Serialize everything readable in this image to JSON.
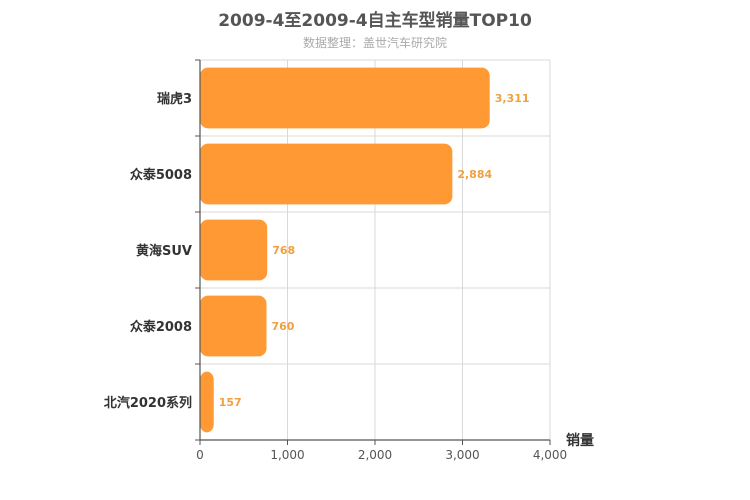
{
  "chart_data": {
    "type": "bar",
    "orientation": "horizontal",
    "title": "2009-4至2009-4自主车型销量TOP10",
    "subtitle": "数据整理：盖世汽车研究院",
    "xlabel": "销量",
    "ylabel": "",
    "categories": [
      "瑞虎3",
      "众泰5008",
      "黄海SUV",
      "众泰2008",
      "北汽2020系列"
    ],
    "values": [
      3311,
      2884,
      768,
      760,
      157
    ],
    "value_labels": [
      "3,311",
      "2,884",
      "768",
      "760",
      "157"
    ],
    "xlim": [
      0,
      4000
    ],
    "xticks": [
      0,
      1000,
      2000,
      3000,
      4000
    ],
    "xtick_labels": [
      "0",
      "1,000",
      "2,000",
      "3,000",
      "4,000"
    ],
    "grid": true,
    "legend": "none",
    "colors": {
      "bar": "#ff9933",
      "value_label": "#f0a040",
      "grid": "#d9d9d9",
      "axis": "#555555"
    }
  }
}
